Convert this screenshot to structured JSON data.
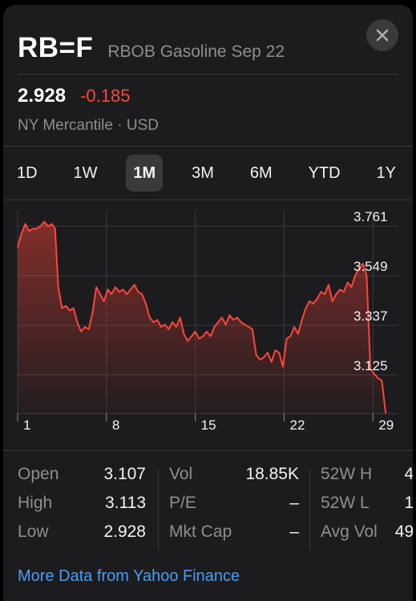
{
  "header": {
    "symbol": "RB=F",
    "company": "RBOB Gasoline Sep 22"
  },
  "quote": {
    "price": "2.928",
    "change": "-0.185",
    "exchange_line": "NY Mercantile · USD"
  },
  "ranges": [
    {
      "label": "1D",
      "active": false
    },
    {
      "label": "1W",
      "active": false
    },
    {
      "label": "1M",
      "active": true
    },
    {
      "label": "3M",
      "active": false
    },
    {
      "label": "6M",
      "active": false
    },
    {
      "label": "YTD",
      "active": false
    },
    {
      "label": "1Y",
      "active": false
    }
  ],
  "colors": {
    "line": "#ff453a",
    "background": "#1c1c1e",
    "link": "#4a9cf6",
    "muted": "#8e8e93"
  },
  "chart_data": {
    "type": "area",
    "y_ticks": [
      "3.761",
      "3.549",
      "3.337",
      "3.125"
    ],
    "x_ticks": [
      {
        "label": "1",
        "day": 1
      },
      {
        "label": "8",
        "day": 8
      },
      {
        "label": "15",
        "day": 15
      },
      {
        "label": "22",
        "day": 22
      },
      {
        "label": "29",
        "day": 29
      }
    ],
    "xlim": [
      1,
      31
    ],
    "ylim": [
      2.96,
      3.83
    ],
    "grid": true,
    "x": [
      1,
      1.3,
      1.6,
      1.9,
      2.2,
      2.5,
      2.8,
      3.1,
      3.4,
      3.7,
      3.95,
      4.2,
      4.5,
      4.8,
      5.1,
      5.4,
      5.7,
      6,
      6.3,
      6.6,
      6.9,
      7.2,
      7.5,
      7.8,
      8.1,
      8.4,
      8.7,
      9,
      9.3,
      9.6,
      9.9,
      10.2,
      10.5,
      10.8,
      11.1,
      11.4,
      11.7,
      12,
      12.3,
      12.6,
      12.9,
      13.2,
      13.5,
      13.8,
      14.1,
      14.4,
      14.7,
      15,
      15.3,
      15.6,
      15.9,
      16.2,
      16.5,
      16.8,
      17.1,
      17.4,
      17.7,
      18,
      18.3,
      18.6,
      18.9,
      19.2,
      19.5,
      19.8,
      20.1,
      20.4,
      20.7,
      21,
      21.3,
      21.6,
      21.9,
      22.2,
      22.5,
      22.8,
      23.1,
      23.4,
      23.7,
      24,
      24.3,
      24.6,
      24.9,
      25.2,
      25.5,
      25.8,
      26.1,
      26.4,
      26.7,
      27,
      27.3,
      27.6,
      27.9,
      28.2,
      28.5,
      28.8,
      29.1,
      29.4,
      29.7,
      30
    ],
    "values": [
      3.67,
      3.73,
      3.77,
      3.74,
      3.75,
      3.75,
      3.76,
      3.78,
      3.76,
      3.77,
      3.75,
      3.5,
      3.41,
      3.42,
      3.4,
      3.41,
      3.35,
      3.31,
      3.33,
      3.32,
      3.39,
      3.5,
      3.47,
      3.44,
      3.49,
      3.47,
      3.5,
      3.48,
      3.49,
      3.47,
      3.49,
      3.51,
      3.48,
      3.47,
      3.43,
      3.37,
      3.35,
      3.36,
      3.33,
      3.34,
      3.32,
      3.35,
      3.33,
      3.37,
      3.3,
      3.27,
      3.29,
      3.31,
      3.28,
      3.29,
      3.31,
      3.29,
      3.33,
      3.35,
      3.37,
      3.34,
      3.38,
      3.36,
      3.37,
      3.35,
      3.34,
      3.33,
      3.32,
      3.21,
      3.19,
      3.2,
      3.22,
      3.18,
      3.23,
      3.22,
      3.16,
      3.28,
      3.29,
      3.33,
      3.3,
      3.36,
      3.41,
      3.44,
      3.43,
      3.45,
      3.48,
      3.47,
      3.51,
      3.44,
      3.47,
      3.49,
      3.48,
      3.52,
      3.5,
      3.55,
      3.58,
      3.6,
      3.55,
      3.15,
      3.13,
      3.11,
      3.1,
      2.96
    ]
  },
  "stats": {
    "col1": [
      {
        "label": "Open",
        "value": "3.107"
      },
      {
        "label": "High",
        "value": "3.113"
      },
      {
        "label": "Low",
        "value": "2.928"
      }
    ],
    "col2": [
      {
        "label": "Vol",
        "value": "18.85K"
      },
      {
        "label": "P/E",
        "value": "–"
      },
      {
        "label": "Mkt Cap",
        "value": "–"
      }
    ],
    "col3": [
      {
        "label": "52W H",
        "value": "4."
      },
      {
        "label": "52W L",
        "value": "1."
      },
      {
        "label": "Avg Vol",
        "value": "49."
      }
    ]
  },
  "footer": {
    "link_label": "More Data from Yahoo Finance"
  }
}
